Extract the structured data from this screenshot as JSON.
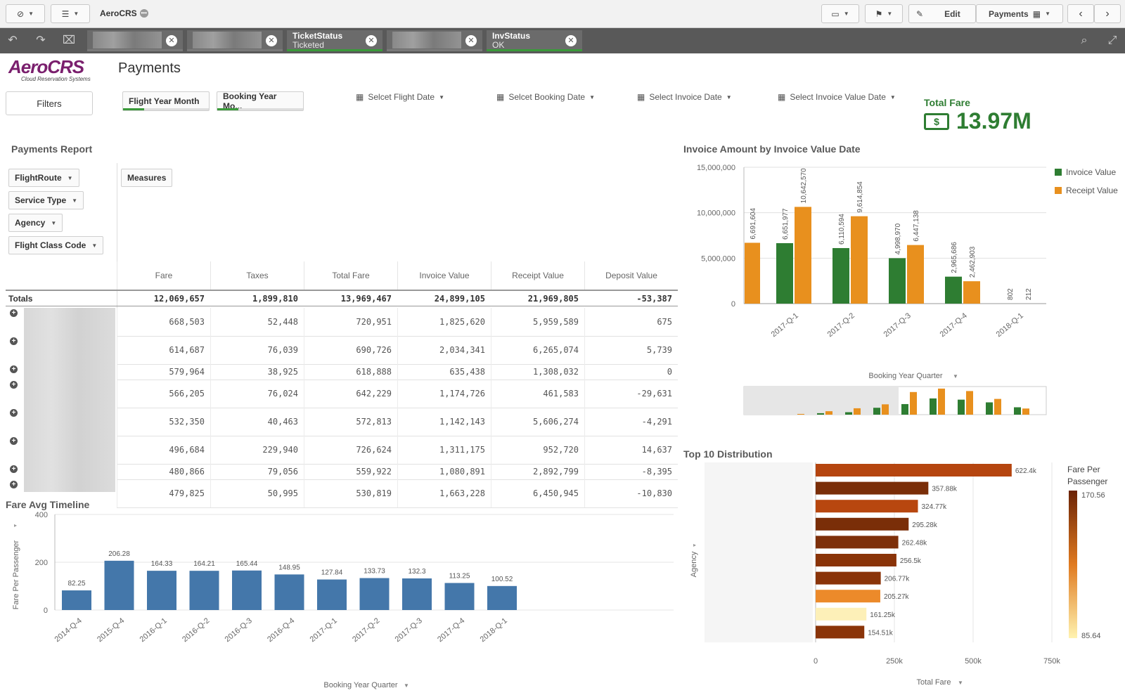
{
  "toolbar": {
    "app_name": "AeroCRS",
    "edit_label": "Edit",
    "sheet_label": "Payments"
  },
  "selections": [
    {
      "field": "",
      "value": ""
    },
    {
      "field": "",
      "value": ""
    },
    {
      "field": "TicketStatus",
      "value": "Ticketed"
    },
    {
      "field": "",
      "value": ""
    },
    {
      "field": "InvStatus",
      "value": "OK"
    }
  ],
  "header": {
    "logo_text": "AeroCRS",
    "logo_tagline": "Cloud Reservation Systems",
    "page_title": "Payments"
  },
  "filters": {
    "filters_button": "Filters",
    "dims": [
      "Flight Year Month",
      "Booking Year Mo..."
    ],
    "date_pickers": [
      "Selcet Flight Date",
      "Selcet Booking Date",
      "Select Invoice Date",
      "Select Invoice Value Date"
    ]
  },
  "kpi": {
    "label": "Total Fare",
    "value": "13.97M"
  },
  "payments_report": {
    "title": "Payments Report",
    "dimensions": [
      "FlightRoute",
      "Service Type",
      "Agency",
      "Flight Class Code"
    ],
    "measures_label": "Measures",
    "columns": [
      "Fare",
      "Taxes",
      "Total Fare",
      "Invoice Value",
      "Receipt Value",
      "Deposit Value"
    ],
    "totals_label": "Totals",
    "totals": [
      "12,069,657",
      "1,899,810",
      "13,969,467",
      "24,899,105",
      "21,969,805",
      "-53,387"
    ],
    "rows": [
      [
        "668,503",
        "52,448",
        "720,951",
        "1,825,620",
        "5,959,589",
        "675"
      ],
      [
        "614,687",
        "76,039",
        "690,726",
        "2,034,341",
        "6,265,074",
        "5,739"
      ],
      [
        "579,964",
        "38,925",
        "618,888",
        "635,438",
        "1,308,032",
        "0"
      ],
      [
        "566,205",
        "76,024",
        "642,229",
        "1,174,726",
        "461,583",
        "-29,631"
      ],
      [
        "532,350",
        "40,463",
        "572,813",
        "1,142,143",
        "5,606,274",
        "-4,291"
      ],
      [
        "496,684",
        "229,940",
        "726,624",
        "1,311,175",
        "952,720",
        "14,637"
      ],
      [
        "480,866",
        "79,056",
        "559,922",
        "1,080,891",
        "2,892,799",
        "-8,395"
      ],
      [
        "479,825",
        "50,995",
        "530,819",
        "1,663,228",
        "6,450,945",
        "-10,830"
      ]
    ]
  },
  "invoice_chart": {
    "title": "Invoice Amount by Invoice Value Date",
    "xlabel": "Booking Year Quarter",
    "legend": [
      "Invoice Value",
      "Receipt Value"
    ]
  },
  "fare_chart": {
    "title": "Fare Avg Timeline",
    "xlabel": "Booking Year Quarter",
    "ylabel": "Fare Per Passenger"
  },
  "top10": {
    "title": "Top 10 Distribution",
    "ylabel": "Agency",
    "xlabel": "Total Fare",
    "legend_title": "Fare Per Passenger",
    "legend_max": "170.56",
    "legend_min": "85.64"
  },
  "chart_data": [
    {
      "type": "bar",
      "title": "Invoice Amount by Invoice Value Date",
      "categories": [
        "2017-Q-1",
        "2017-Q-2",
        "2017-Q-3",
        "2017-Q-4",
        "2018-Q-1"
      ],
      "leading_receipt": 6691604,
      "series": [
        {
          "name": "Invoice Value",
          "color": "#2e7d32",
          "values": [
            6651977,
            6110594,
            4998970,
            2965686,
            802
          ]
        },
        {
          "name": "Receipt Value",
          "color": "#e8901e",
          "values": [
            10642570,
            9614854,
            6447138,
            2462903,
            212
          ]
        }
      ],
      "labels": {
        "leading": "6,691,604",
        "Invoice Value": [
          "6,651,977",
          "6,110,594",
          "4,998,970",
          "2,965,686",
          "802"
        ],
        "Receipt Value": [
          "10,642,570",
          "9,614,854",
          "6,447,138",
          "2,462,903",
          "212"
        ]
      },
      "yticks": [
        "15,000,000",
        "10,000,000",
        "5,000,000",
        "0"
      ],
      "ylim": [
        0,
        15000000
      ],
      "xlabel": "Booking Year Quarter",
      "legend": "right"
    },
    {
      "type": "bar",
      "title": "Fare Avg Timeline",
      "categories": [
        "2014-Q-4",
        "2015-Q-4",
        "2016-Q-1",
        "2016-Q-2",
        "2016-Q-3",
        "2016-Q-4",
        "2017-Q-1",
        "2017-Q-2",
        "2017-Q-3",
        "2017-Q-4",
        "2018-Q-1"
      ],
      "values": [
        82.25,
        206.28,
        164.33,
        164.21,
        165.44,
        148.95,
        127.84,
        133.73,
        132.3,
        113.25,
        100.52
      ],
      "labels": [
        "82.25",
        "206.28",
        "164.33",
        "164.21",
        "165.44",
        "148.95",
        "127.84",
        "133.73",
        "132.3",
        "113.25",
        "100.52"
      ],
      "yticks": [
        "400",
        "200",
        "0"
      ],
      "ylim": [
        0,
        400
      ],
      "xlabel": "Booking Year Quarter",
      "ylabel": "Fare Per Passenger",
      "color": "#4477aa"
    },
    {
      "type": "bar",
      "orientation": "horizontal",
      "title": "Top 10 Distribution",
      "values": [
        622400,
        357880,
        324770,
        295280,
        262480,
        256500,
        206770,
        205270,
        161250,
        154510
      ],
      "labels": [
        "622.4k",
        "357.88k",
        "324.77k",
        "295.28k",
        "262.48k",
        "256.5k",
        "206.77k",
        "205.27k",
        "161.25k",
        "154.51k"
      ],
      "colors": [
        "#b5450f",
        "#7a2e08",
        "#b8470f",
        "#7a2e08",
        "#7e300a",
        "#8a3409",
        "#8a3409",
        "#ec8a2a",
        "#fdf0b8",
        "#8a3409"
      ],
      "xticks": [
        "0",
        "250k",
        "500k",
        "750k"
      ],
      "xlim": [
        0,
        750000
      ],
      "xlabel": "Total Fare",
      "ylabel": "Agency"
    }
  ]
}
